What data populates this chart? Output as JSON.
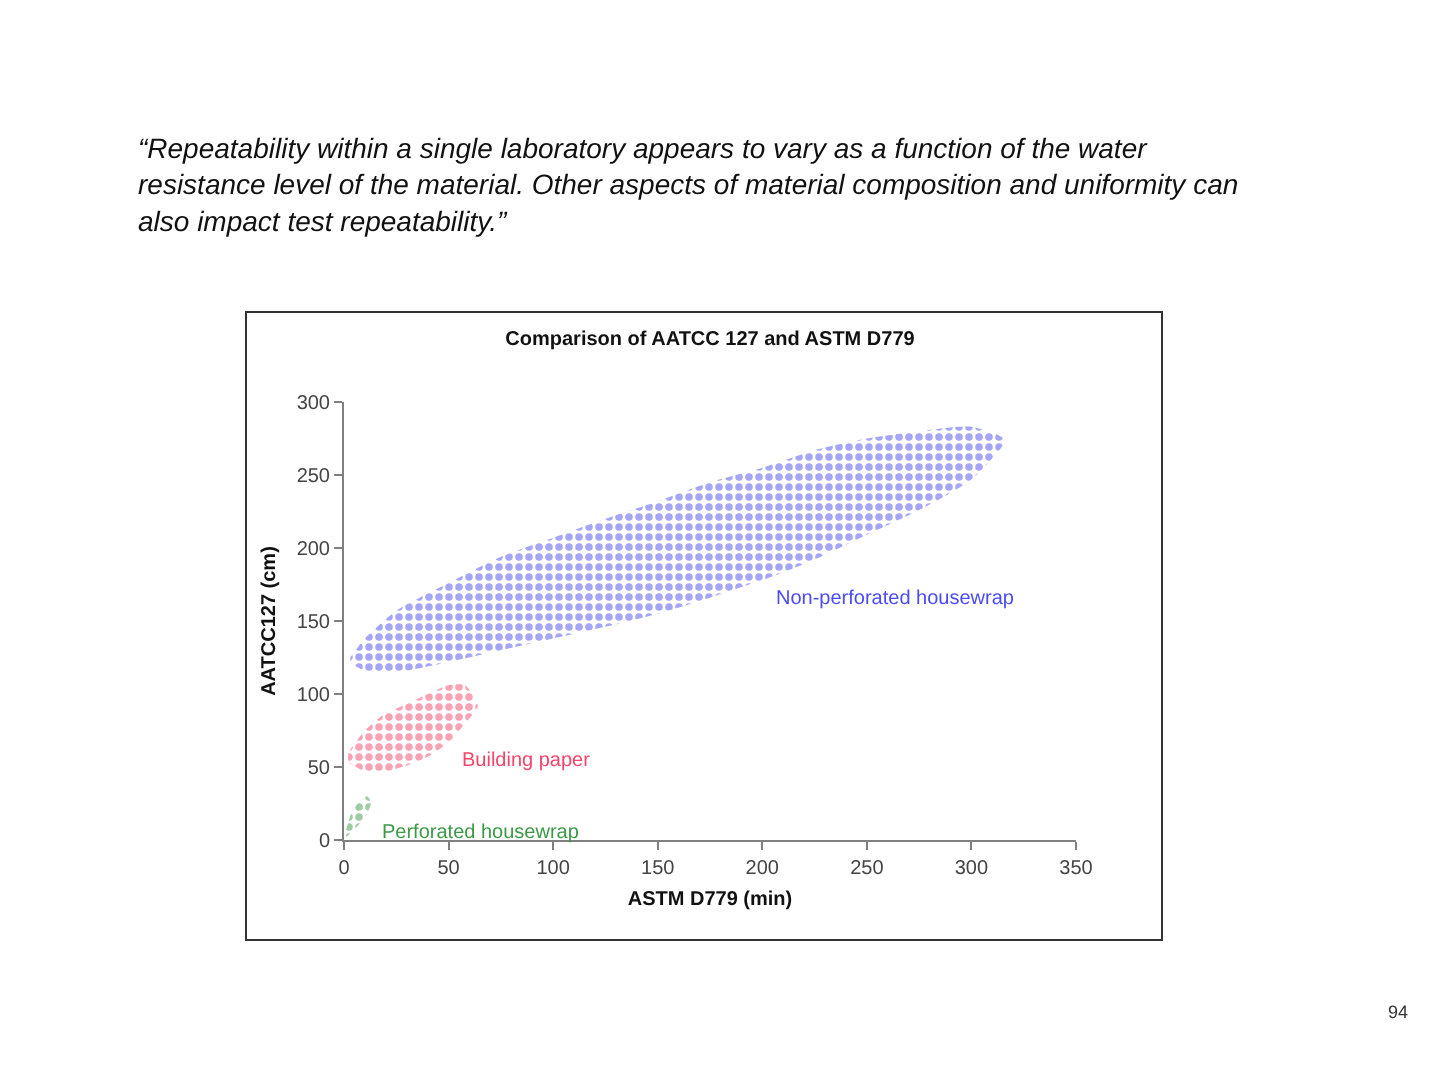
{
  "chart_data": {
    "type": "area",
    "title": "Comparison of AATCC 127 and ASTM D779",
    "subtitle": "“Repeatability within a single laboratory appears to vary as a function of the water resistance level of the material. Other aspects of material composition and uniformity can also impact test repeatability.”",
    "xlabel": "ASTM D779 (min)",
    "ylabel": "AATCC127 (cm)",
    "annotations": [
      "94"
    ],
    "xlim": [
      0,
      350
    ],
    "ylim": [
      0,
      300
    ],
    "xticks": [
      0,
      50,
      100,
      150,
      200,
      250,
      300,
      350
    ],
    "yticks": [
      0,
      50,
      100,
      150,
      200,
      250,
      300
    ],
    "series": [
      {
        "name": "Non-perforated housewrap",
        "color": "#4b4bf5",
        "x": [
          3,
          10,
          25,
          50,
          75,
          100,
          125,
          150,
          175,
          200,
          225,
          250,
          275,
          300,
          316,
          300,
          275,
          250,
          225,
          200,
          175,
          150,
          125,
          100,
          75,
          50,
          25,
          10,
          3
        ],
        "values": [
          125,
          138,
          157,
          176,
          194,
          207,
          220,
          232,
          245,
          255,
          267,
          275,
          280,
          283,
          274,
          247,
          226,
          209,
          192,
          178,
          166,
          155,
          146,
          138,
          130,
          122,
          115,
          116,
          121
        ]
      },
      {
        "name": "Building paper",
        "color": "#f5456a",
        "x": [
          2,
          10,
          20,
          30,
          40,
          50,
          58,
          64,
          58,
          50,
          40,
          30,
          20,
          10,
          2
        ],
        "values": [
          60,
          75,
          87,
          93,
          100,
          106,
          106,
          92,
          80,
          67,
          57,
          51,
          47,
          47,
          53
        ]
      },
      {
        "name": "Perforated housewrap",
        "color": "#3c9a46",
        "x": [
          1,
          4,
          8,
          11,
          13,
          11,
          8,
          4,
          1
        ],
        "values": [
          7,
          20,
          27,
          30,
          26,
          18,
          12,
          6,
          2
        ]
      }
    ]
  }
}
